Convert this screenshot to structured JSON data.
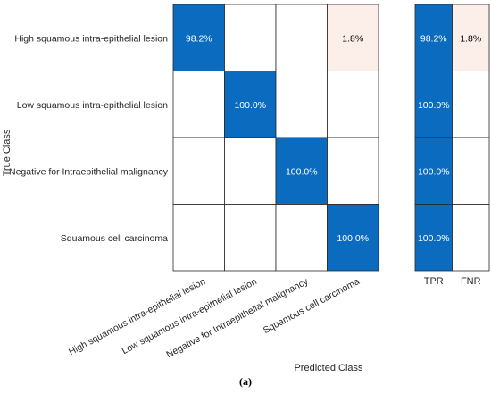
{
  "caption": "(a)",
  "chart_data": {
    "type": "heatmap",
    "xlabel": "Predicted Class",
    "ylabel": "True Class",
    "classes": [
      "High squamous intra-epithelial lesion",
      "Low squamous intra-epithelial lesion",
      "Negative for Intraepithelial malignancy",
      "Squamous cell carcinoma"
    ],
    "matrix": [
      [
        98.2,
        null,
        null,
        1.8
      ],
      [
        null,
        100.0,
        null,
        null
      ],
      [
        null,
        null,
        100.0,
        null
      ],
      [
        null,
        null,
        null,
        100.0
      ]
    ],
    "summary_columns": [
      "TPR",
      "FNR"
    ],
    "summary": [
      [
        98.2,
        1.8
      ],
      [
        100.0,
        null
      ],
      [
        100.0,
        null
      ],
      [
        100.0,
        null
      ]
    ],
    "value_format": "percent_1dp",
    "colors": {
      "correct": "#0b6bbf",
      "incorrect": "#fcefe9",
      "empty": "#ffffff",
      "grid": "#262626",
      "text_on_dark": "#ffffff",
      "text_on_light": "#000000"
    }
  }
}
